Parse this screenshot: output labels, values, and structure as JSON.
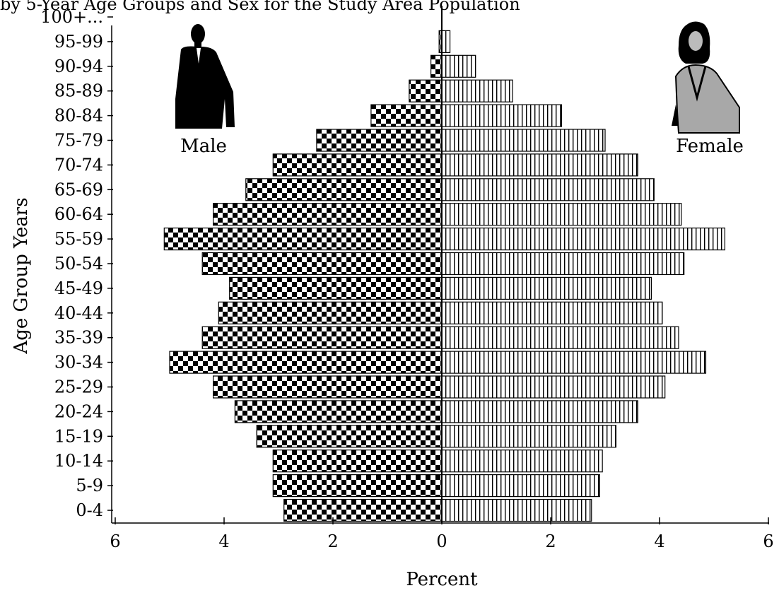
{
  "caption": "by 5-Year Age Groups and Sex for the Study Area Population",
  "chart_data": {
    "type": "bar",
    "orientation": "horizontal",
    "subtype": "population-pyramid",
    "title": "",
    "xlabel": "Percent",
    "ylabel": "Age Group Years",
    "xlim": [
      -6,
      6
    ],
    "x_ticks": [
      6,
      4,
      2,
      0,
      2,
      4,
      6
    ],
    "categories": [
      "0-4",
      "5-9",
      "10-14",
      "15-19",
      "20-24",
      "25-29",
      "30-34",
      "35-39",
      "40-44",
      "45-49",
      "50-54",
      "55-59",
      "60-64",
      "65-69",
      "70-74",
      "75-79",
      "80-84",
      "85-89",
      "90-94",
      "95-99",
      "100+..."
    ],
    "series": [
      {
        "name": "Male",
        "color": "#000000",
        "pattern": "checkerboard",
        "values": [
          2.9,
          3.1,
          3.1,
          3.4,
          3.8,
          4.2,
          5.0,
          4.4,
          4.1,
          3.9,
          4.4,
          5.1,
          4.2,
          3.6,
          3.1,
          2.3,
          1.3,
          0.6,
          0.2,
          0.05,
          0.0
        ]
      },
      {
        "name": "Female",
        "color": "#000000",
        "pattern": "vertical-stripes",
        "values": [
          2.75,
          2.9,
          2.95,
          3.2,
          3.6,
          4.1,
          4.85,
          4.35,
          4.05,
          3.85,
          4.45,
          5.2,
          4.4,
          3.9,
          3.6,
          3.0,
          2.2,
          1.3,
          0.62,
          0.15,
          0.0
        ]
      }
    ],
    "grid": false,
    "legend": "none",
    "labels": {
      "male": "Male",
      "female": "Female"
    }
  }
}
